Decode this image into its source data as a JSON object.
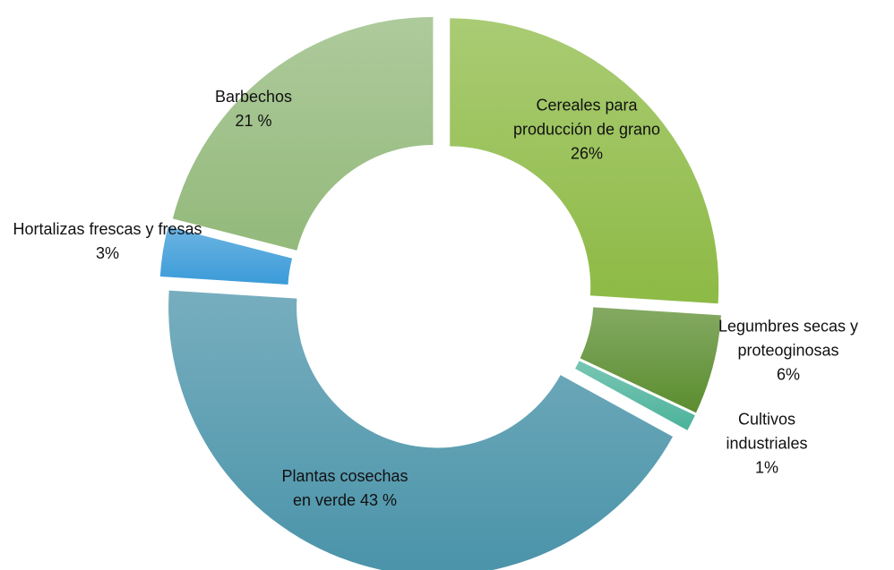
{
  "chart_data": {
    "type": "donut",
    "categories": [
      "Cereales para producción de grano",
      "Legumbres secas y proteoginosas",
      "Cultivos industriales",
      "Plantas cosechas en verde",
      "Hortalizas frescas y fresas",
      "Barbechos"
    ],
    "values": [
      26,
      6,
      1,
      43,
      3,
      21
    ],
    "value_labels": [
      "26%",
      "6%",
      "1%",
      "43 %",
      "3%",
      "21 %"
    ],
    "colors": [
      "#8dba45",
      "#5b8d2f",
      "#4cb39b",
      "#4a93a9",
      "#3b9bd8",
      "#93b97b"
    ]
  }
}
